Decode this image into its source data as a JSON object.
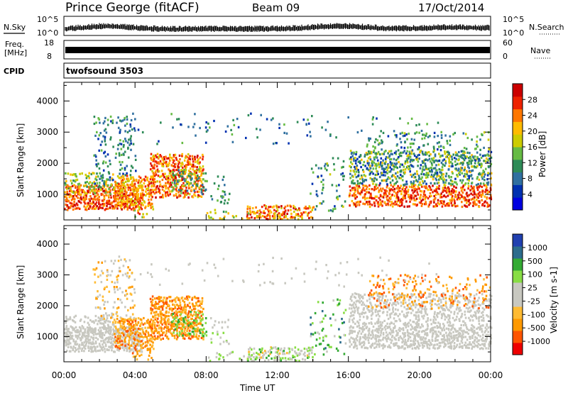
{
  "header": {
    "station": "Prince George (fitACF)",
    "beam": "Beam 09",
    "date": "17/Oct/2014"
  },
  "panels": {
    "nsky_label": "N.Sky",
    "nsky_ticks": [
      "10^5",
      "10^0"
    ],
    "nsearch_label": "N.Search",
    "nsearch_ticks": [
      "10^5",
      "10^0"
    ],
    "freq_label_1": "Freq.",
    "freq_label_2": "[MHz]",
    "freq_ticks": [
      "18",
      "8"
    ],
    "nave_label": "Nave",
    "nave_ticks": [
      "60",
      "0"
    ],
    "cpid_label": "CPID",
    "cpid_value": "twofsound 3503"
  },
  "chart_data": [
    {
      "type": "heatmap",
      "name": "power",
      "ylabel": "Slant Range [km]",
      "ylim": [
        180,
        4600
      ],
      "yticks": [
        "1000",
        "2000",
        "3000",
        "4000"
      ],
      "colorbar": {
        "label": "Power [dB]",
        "ticks": [
          "28",
          "24",
          "20",
          "16",
          "12",
          "8",
          "4"
        ],
        "colors": [
          "#0000e0",
          "#0030b0",
          "#3070a0",
          "#2e8b57",
          "#66bb44",
          "#cccc00",
          "#ffbb00",
          "#ff7700",
          "#ee2200",
          "#cc0000"
        ]
      },
      "features": [
        {
          "time": "00:00-04:30",
          "range_km": [
            400,
            1400
          ],
          "level": "high"
        },
        {
          "time": "02:00-04:00",
          "range_km": [
            1200,
            3500
          ],
          "level": "low-mid"
        },
        {
          "time": "05:00-08:00",
          "range_km": [
            800,
            2300
          ],
          "level": "high"
        },
        {
          "time": "10:30-14:00",
          "range_km": [
            200,
            700
          ],
          "level": "high"
        },
        {
          "time": "16:30-24:00",
          "range_km": [
            600,
            2500
          ],
          "level": "mid-high"
        }
      ]
    },
    {
      "type": "heatmap",
      "name": "velocity",
      "ylabel": "Slant Range [km]",
      "ylim": [
        180,
        4600
      ],
      "yticks": [
        "1000",
        "2000",
        "3000",
        "4000"
      ],
      "colorbar": {
        "label": "Velocity [m s-1]",
        "ticks": [
          "1000",
          "500",
          "100",
          "25",
          "-25",
          "-100",
          "-500",
          "-1000"
        ],
        "colors": [
          "#ee0000",
          "#ff5500",
          "#ff9900",
          "#ffbb33",
          "#c8c8c0",
          "#c8c8c0",
          "#88dd44",
          "#33aa33",
          "#2c6c8c",
          "#2040b0"
        ]
      },
      "features": [
        {
          "time": "00:00-03:00",
          "range_km": [
            400,
            1700
          ],
          "velocity": "near zero"
        },
        {
          "time": "03:00-08:00",
          "range_km": [
            500,
            2300
          ],
          "velocity": "-100 to -500"
        },
        {
          "time": "10:00-14:00",
          "range_km": [
            200,
            800
          ],
          "velocity": "mixed"
        },
        {
          "time": "16:00-24:00",
          "range_km": [
            500,
            1900
          ],
          "velocity": "near zero"
        },
        {
          "time": "17:00-24:00",
          "range_km": [
            1900,
            3100
          ],
          "velocity": "-100 to -500"
        }
      ]
    }
  ],
  "xaxis": {
    "ticks": [
      "00:00",
      "04:00",
      "08:00",
      "12:00",
      "16:00",
      "20:00",
      "00:00"
    ],
    "label": "Time UT"
  }
}
